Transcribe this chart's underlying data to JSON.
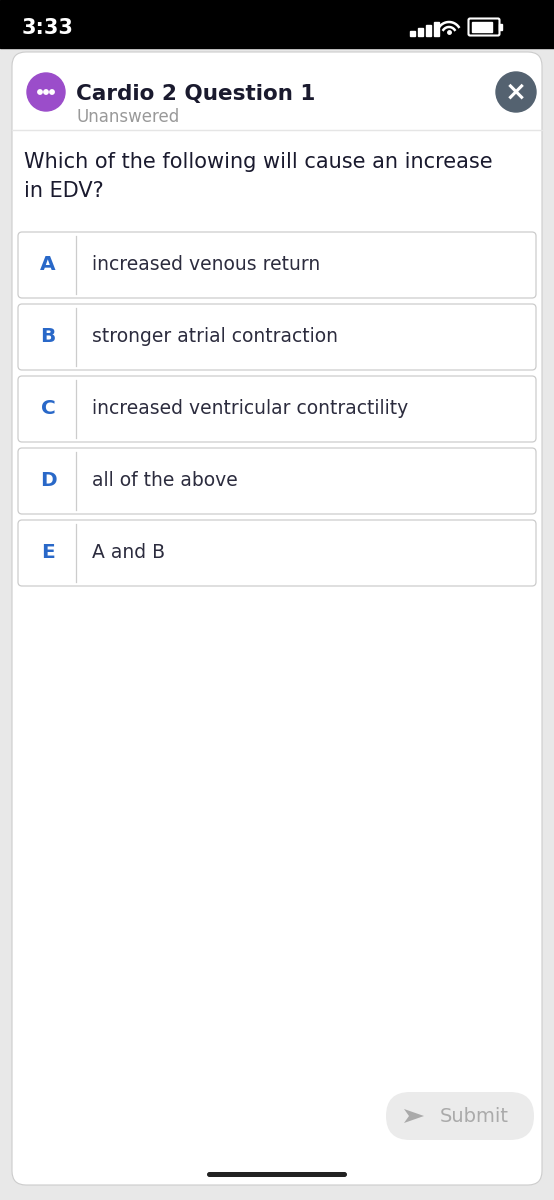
{
  "time": "3:33",
  "title": "Cardio 2 Question 1",
  "subtitle": "Unanswered",
  "question": "Which of the following will cause an increase\nin EDV?",
  "options": [
    {
      "letter": "A",
      "text": "increased venous return"
    },
    {
      "letter": "B",
      "text": "stronger atrial contraction"
    },
    {
      "letter": "C",
      "text": "increased ventricular contractility"
    },
    {
      "letter": "D",
      "text": "all of the above"
    },
    {
      "letter": "E",
      "text": "A and B"
    }
  ],
  "bg_color": "#ffffff",
  "status_bar_bg": "#000000",
  "page_bg": "#e8e8e8",
  "option_letter_color": "#2968c8",
  "option_text_color": "#2c2c3e",
  "title_color": "#1a1a2e",
  "subtitle_color": "#999999",
  "question_color": "#1a1a2e",
  "border_color": "#cccccc",
  "time_color": "#ffffff",
  "submit_bg": "#ebebeb",
  "submit_text_color": "#aaaaaa",
  "chat_icon_color": "#9b4dca",
  "close_btn_color": "#546270",
  "divider_color": "#e5e5e5",
  "home_indicator_color": "#222222"
}
